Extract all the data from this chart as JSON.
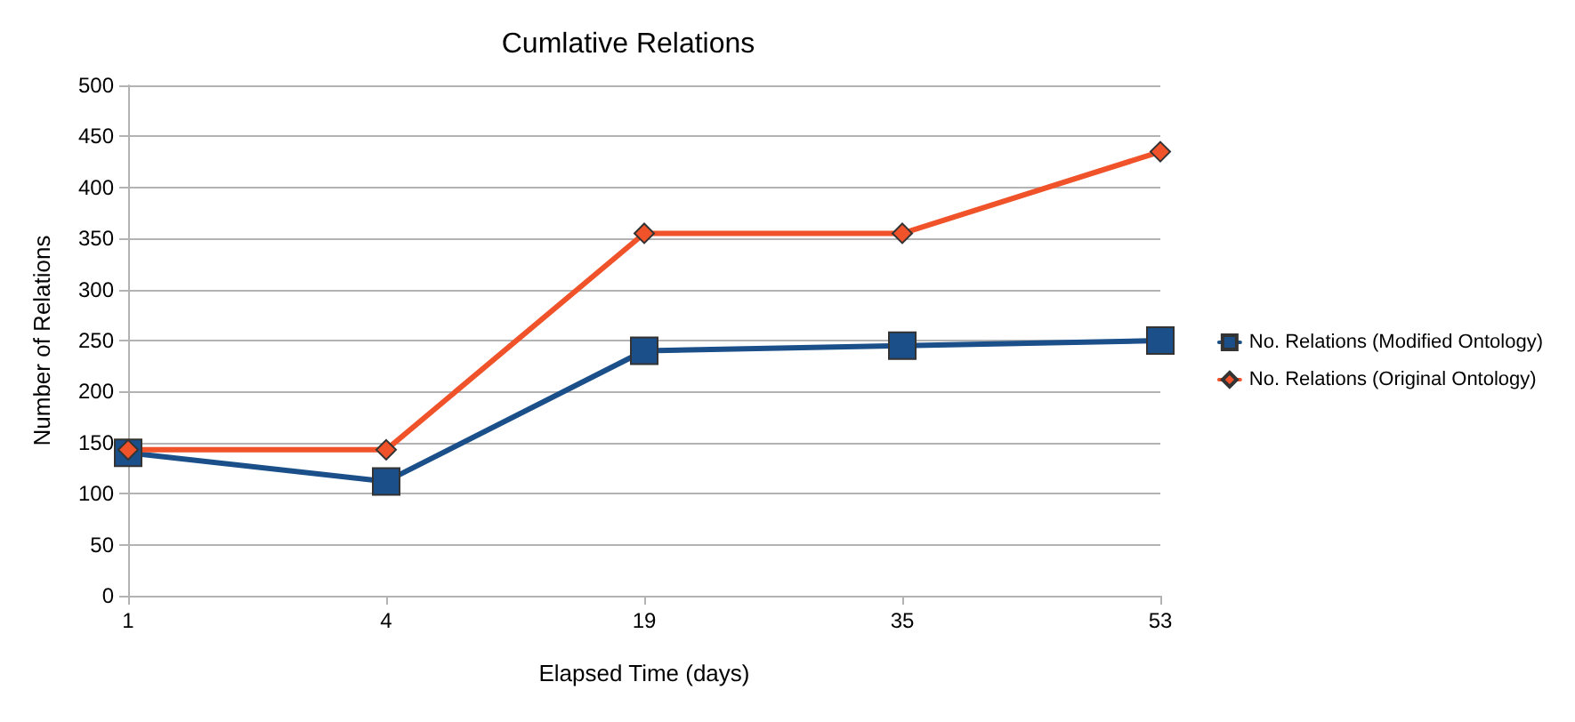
{
  "chart_data": {
    "type": "line",
    "title": "Cumlative Relations",
    "xlabel": "Elapsed Time (days)",
    "ylabel": "Number of Relations",
    "categories": [
      "1",
      "4",
      "19",
      "35",
      "53"
    ],
    "series": [
      {
        "name": "No. Relations (Modified Ontology)",
        "color": "#1a4f8a",
        "marker": "square",
        "values": [
          140,
          112,
          240,
          245,
          250
        ]
      },
      {
        "name": "No. Relations (Original Ontology)",
        "color": "#f0522a",
        "marker": "diamond",
        "values": [
          143,
          143,
          355,
          355,
          435
        ]
      }
    ],
    "ylim": [
      0,
      500
    ],
    "yticks": [
      0,
      50,
      100,
      150,
      200,
      250,
      300,
      350,
      400,
      450,
      500
    ],
    "grid": "y",
    "legend": "right"
  }
}
